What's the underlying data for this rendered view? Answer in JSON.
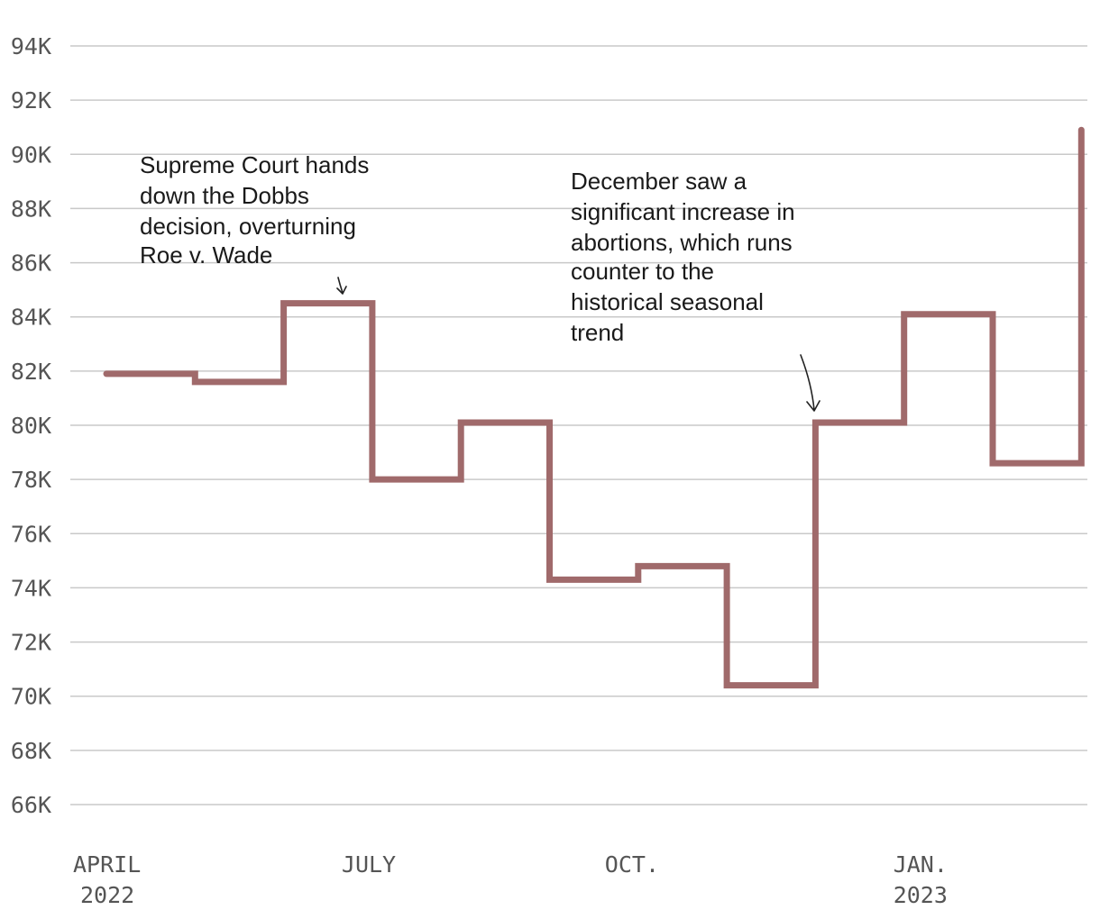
{
  "chart_data": {
    "type": "line",
    "style": "step",
    "title": "",
    "xlabel": "",
    "ylabel": "",
    "ylim": [
      66000,
      94000
    ],
    "y_ticks": [
      {
        "value": 94000,
        "label": "94K"
      },
      {
        "value": 92000,
        "label": "92K"
      },
      {
        "value": 90000,
        "label": "90K"
      },
      {
        "value": 88000,
        "label": "88K"
      },
      {
        "value": 86000,
        "label": "86K"
      },
      {
        "value": 84000,
        "label": "84K"
      },
      {
        "value": 82000,
        "label": "82K"
      },
      {
        "value": 80000,
        "label": "80K"
      },
      {
        "value": 78000,
        "label": "78K"
      },
      {
        "value": 76000,
        "label": "76K"
      },
      {
        "value": 74000,
        "label": "74K"
      },
      {
        "value": 72000,
        "label": "72K"
      },
      {
        "value": 70000,
        "label": "70K"
      },
      {
        "value": 68000,
        "label": "68K"
      },
      {
        "value": 66000,
        "label": "66K"
      }
    ],
    "x_ticks": [
      {
        "index": 0,
        "line1": "APRIL",
        "line2": "2022"
      },
      {
        "index": 3,
        "line1": "JULY",
        "line2": ""
      },
      {
        "index": 6,
        "line1": "OCT.",
        "line2": ""
      },
      {
        "index": 9,
        "line1": "JAN.",
        "line2": "2023"
      }
    ],
    "categories": [
      "Apr 2022",
      "May 2022",
      "Jun 2022",
      "Jul 2022",
      "Aug 2022",
      "Sep 2022",
      "Oct 2022",
      "Nov 2022",
      "Dec 2022",
      "Jan 2023",
      "Feb 2023",
      "Mar 2023"
    ],
    "series": [
      {
        "name": "Abortions",
        "color": "#a06a6b",
        "values": [
          81900,
          81600,
          84500,
          78000,
          80100,
          74300,
          74800,
          70400,
          80100,
          84100,
          78600,
          90900
        ]
      }
    ],
    "annotations": [
      {
        "id": "dobbs",
        "lines": [
          "Supreme Court hands",
          "down the Dobbs",
          "decision, overturning",
          "Roe v. Wade"
        ],
        "points_to_index": 2
      },
      {
        "id": "december",
        "lines": [
          "December saw a",
          "significant increase in",
          "abortions, which runs",
          "counter to the",
          "historical seasonal",
          "trend"
        ],
        "points_to_index": 8
      }
    ]
  }
}
